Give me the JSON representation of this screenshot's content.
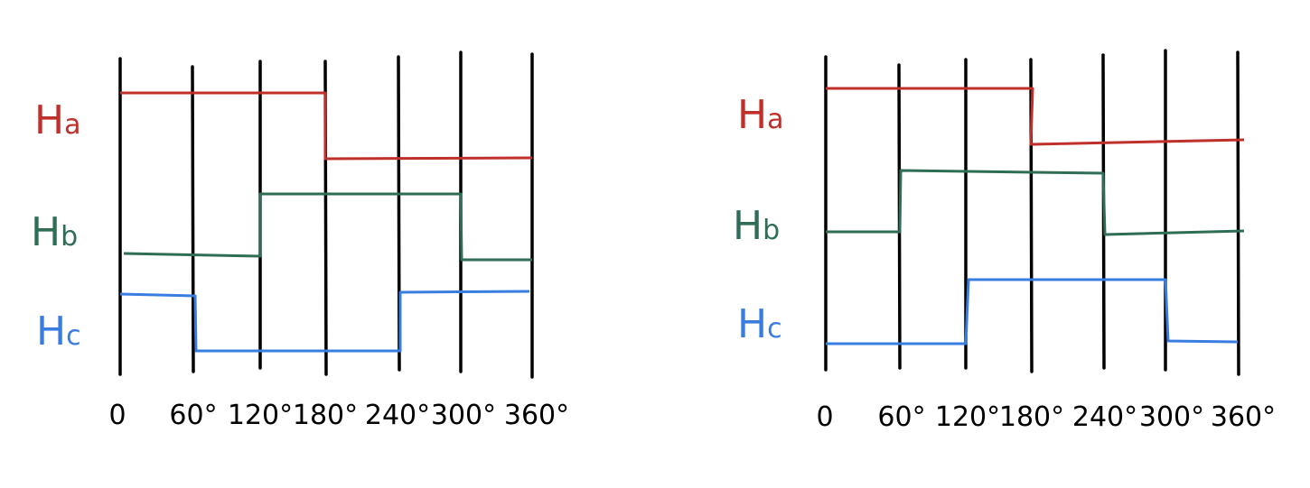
{
  "panels": [
    {
      "signals": [
        {
          "main": "H",
          "sub": "a"
        },
        {
          "main": "H",
          "sub": "b"
        },
        {
          "main": "H",
          "sub": "c"
        }
      ],
      "x_labels": [
        "0",
        "60°",
        "120°",
        "180°",
        "240°",
        "300°",
        "360°"
      ]
    },
    {
      "signals": [
        {
          "main": "H",
          "sub": "a"
        },
        {
          "main": "H",
          "sub": "b"
        },
        {
          "main": "H",
          "sub": "c"
        }
      ],
      "x_labels": [
        "0",
        "60°",
        "120°",
        "180°",
        "240°",
        "300°",
        "360°"
      ]
    }
  ]
}
